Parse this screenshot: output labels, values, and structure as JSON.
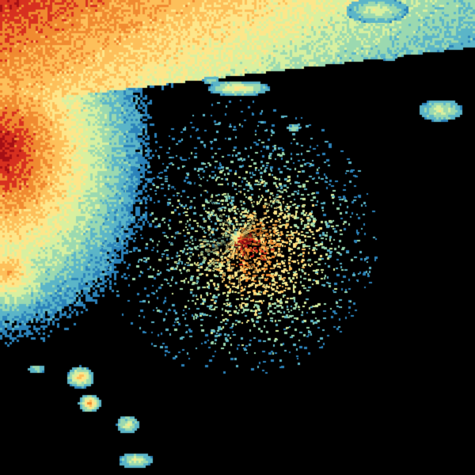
{
  "colors": {
    "background": "#000000",
    "scale": [
      "#2b83ba",
      "#5bb5c8",
      "#9bd9b0",
      "#d8f0a0",
      "#fde68a",
      "#fdbf5a",
      "#f08a30",
      "#d7301f",
      "#a50f15"
    ]
  }
}
